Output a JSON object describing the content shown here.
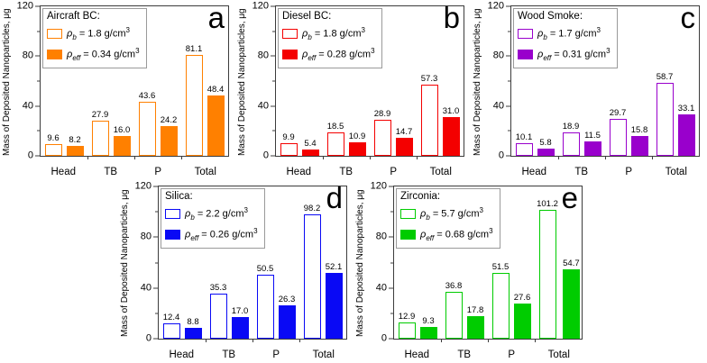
{
  "chart_data": [
    {
      "type": "bar",
      "panel": "a",
      "title": "Aircraft BC:",
      "color": "#FF8000",
      "ylabel": "Mass of Deposited Nanoparticles, μg",
      "ylim": [
        0,
        120
      ],
      "yticks": [
        0,
        40,
        80,
        120
      ],
      "yminorticks": [
        20,
        60,
        100
      ],
      "categories": [
        "Head",
        "TB",
        "P",
        "Total"
      ],
      "legend_position": "top-left",
      "grid": false,
      "legend": [
        {
          "swatch": "open",
          "rho": "ρ",
          "sub": "b",
          "rest": " = 1.8 g/cm",
          "sup": "3"
        },
        {
          "swatch": "filled",
          "rho": "ρ",
          "sub": "eff",
          "rest": " = 0.34 g/cm",
          "sup": "3"
        }
      ],
      "series": [
        {
          "name": "ρb = 1.8 g/cm³",
          "style": "open",
          "values": [
            9.6,
            27.9,
            43.6,
            81.1
          ],
          "labels": [
            "9.6",
            "27.9",
            "43.6",
            "81.1"
          ]
        },
        {
          "name": "ρeff = 0.34 g/cm³",
          "style": "filled",
          "values": [
            8.2,
            16.0,
            24.2,
            48.4
          ],
          "labels": [
            "8.2",
            "16.0",
            "24.2",
            "48.4"
          ]
        }
      ]
    },
    {
      "type": "bar",
      "panel": "b",
      "title": "Diesel BC:",
      "color": "#F40000",
      "ylabel": "Mass of Deposited Nanoparticles, μg",
      "ylim": [
        0,
        120
      ],
      "yticks": [
        0,
        40,
        80,
        120
      ],
      "yminorticks": [
        20,
        60,
        100
      ],
      "categories": [
        "Head",
        "TB",
        "P",
        "Total"
      ],
      "legend_position": "top-left",
      "grid": false,
      "legend": [
        {
          "swatch": "open",
          "rho": "ρ",
          "sub": "b",
          "rest": " = 1.8 g/cm",
          "sup": "3"
        },
        {
          "swatch": "filled",
          "rho": "ρ",
          "sub": "eff",
          "rest": " = 0.28 g/cm",
          "sup": "3"
        }
      ],
      "series": [
        {
          "name": "ρb = 1.8 g/cm³",
          "style": "open",
          "values": [
            9.9,
            18.5,
            28.9,
            57.3
          ],
          "labels": [
            "9.9",
            "18.5",
            "28.9",
            "57.3"
          ]
        },
        {
          "name": "ρeff = 0.28 g/cm³",
          "style": "filled",
          "values": [
            5.4,
            10.9,
            14.7,
            31.0
          ],
          "labels": [
            "5.4",
            "10.9",
            "14.7",
            "31.0"
          ]
        }
      ]
    },
    {
      "type": "bar",
      "panel": "c",
      "title": "Wood Smoke:",
      "color": "#9900CC",
      "ylabel": "Mass of Deposited Nanoparticles, μg",
      "ylim": [
        0,
        120
      ],
      "yticks": [
        0,
        40,
        80,
        120
      ],
      "yminorticks": [
        20,
        60,
        100
      ],
      "categories": [
        "Head",
        "TB",
        "P",
        "Total"
      ],
      "legend_position": "top-left",
      "grid": false,
      "legend": [
        {
          "swatch": "open",
          "rho": "ρ",
          "sub": "b",
          "rest": " = 1.7 g/cm",
          "sup": "3"
        },
        {
          "swatch": "filled",
          "rho": "ρ",
          "sub": "eff",
          "rest": " = 0.31 g/cm",
          "sup": "3"
        }
      ],
      "series": [
        {
          "name": "ρb = 1.7 g/cm³",
          "style": "open",
          "values": [
            10.1,
            18.9,
            29.7,
            58.7
          ],
          "labels": [
            "10.1",
            "18.9",
            "29.7",
            "58.7"
          ]
        },
        {
          "name": "ρeff = 0.31 g/cm³",
          "style": "filled",
          "values": [
            5.8,
            11.5,
            15.8,
            33.1
          ],
          "labels": [
            "5.8",
            "11.5",
            "15.8",
            "33.1"
          ]
        }
      ]
    },
    {
      "type": "bar",
      "panel": "d",
      "title": "Silica:",
      "color": "#0909F5",
      "ylabel": "Mass of Deposited Nanoparticles, μg",
      "ylim": [
        0,
        120
      ],
      "yticks": [
        0,
        40,
        80,
        120
      ],
      "yminorticks": [
        20,
        60,
        100
      ],
      "categories": [
        "Head",
        "TB",
        "P",
        "Total"
      ],
      "legend_position": "top-left",
      "grid": false,
      "legend": [
        {
          "swatch": "open",
          "rho": "ρ",
          "sub": "b",
          "rest": " = 2.2 g/cm",
          "sup": "3"
        },
        {
          "swatch": "filled",
          "rho": "ρ",
          "sub": "eff",
          "rest": " = 0.26 g/cm",
          "sup": "3"
        }
      ],
      "series": [
        {
          "name": "ρb = 2.2 g/cm³",
          "style": "open",
          "values": [
            12.4,
            35.3,
            50.5,
            98.2
          ],
          "labels": [
            "12.4",
            "35.3",
            "50.5",
            "98.2"
          ]
        },
        {
          "name": "ρeff = 0.26 g/cm³",
          "style": "filled",
          "values": [
            8.8,
            17.0,
            26.3,
            52.1
          ],
          "labels": [
            "8.8",
            "17.0",
            "26.3",
            "52.1"
          ]
        }
      ]
    },
    {
      "type": "bar",
      "panel": "e",
      "title": "Zirconia:",
      "color": "#00CC00",
      "ylabel": "Mass of Deposited Nanoparticles, μg",
      "ylim": [
        0,
        120
      ],
      "yticks": [
        0,
        40,
        80,
        120
      ],
      "yminorticks": [
        20,
        60,
        100
      ],
      "categories": [
        "Head",
        "TB",
        "P",
        "Total"
      ],
      "legend_position": "top-left",
      "grid": false,
      "legend": [
        {
          "swatch": "open",
          "rho": "ρ",
          "sub": "b",
          "rest": " = 5.7 g/cm",
          "sup": "3"
        },
        {
          "swatch": "filled",
          "rho": "ρ",
          "sub": "eff",
          "rest": " = 0.68 g/cm",
          "sup": "3"
        }
      ],
      "series": [
        {
          "name": "ρb = 5.7 g/cm³",
          "style": "open",
          "values": [
            12.9,
            36.8,
            51.5,
            101.2
          ],
          "labels": [
            "12.9",
            "36.8",
            "51.5",
            "101.2"
          ]
        },
        {
          "name": "ρeff = 0.68 g/cm³",
          "style": "filled",
          "values": [
            9.3,
            17.8,
            27.6,
            54.7
          ],
          "labels": [
            "9.3",
            "17.8",
            "27.6",
            "54.7"
          ]
        }
      ]
    }
  ]
}
